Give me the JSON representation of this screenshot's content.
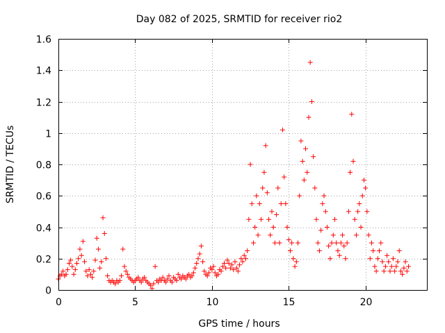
{
  "chart_data": {
    "type": "scatter",
    "title": "Day 082 of 2025, SRMTID for receiver rio2",
    "xlabel": "GPS time / hours",
    "ylabel": "SRMTID / TECUs",
    "xlim": [
      0,
      24
    ],
    "ylim": [
      0,
      1.6
    ],
    "xticks": [
      0,
      5,
      10,
      15,
      20
    ],
    "xtick_labels": [
      "0",
      "5",
      "10",
      "15",
      "20"
    ],
    "yticks": [
      0,
      0.2,
      0.4,
      0.6,
      0.8,
      1.0,
      1.2,
      1.4,
      1.6
    ],
    "ytick_labels": [
      "0",
      "0.2",
      "0.4",
      "0.6",
      "0.8",
      "1",
      "1.2",
      "1.4",
      "1.6"
    ],
    "grid": true,
    "marker": "plus",
    "color": "#ff0000",
    "series": [
      {
        "name": "rio2",
        "points": [
          [
            0.0,
            0.07
          ],
          [
            0.1,
            0.09
          ],
          [
            0.2,
            0.1
          ],
          [
            0.3,
            0.12
          ],
          [
            0.4,
            0.09
          ],
          [
            0.5,
            0.1
          ],
          [
            0.6,
            0.13
          ],
          [
            0.7,
            0.17
          ],
          [
            0.8,
            0.19
          ],
          [
            0.9,
            0.15
          ],
          [
            1.0,
            0.1
          ],
          [
            1.1,
            0.13
          ],
          [
            1.2,
            0.17
          ],
          [
            1.3,
            0.2
          ],
          [
            1.4,
            0.26
          ],
          [
            1.5,
            0.22
          ],
          [
            1.6,
            0.31
          ],
          [
            1.7,
            0.18
          ],
          [
            1.8,
            0.12
          ],
          [
            1.9,
            0.09
          ],
          [
            2.0,
            0.13
          ],
          [
            2.1,
            0.1
          ],
          [
            2.2,
            0.08
          ],
          [
            2.3,
            0.12
          ],
          [
            2.4,
            0.19
          ],
          [
            2.5,
            0.33
          ],
          [
            2.6,
            0.26
          ],
          [
            2.7,
            0.14
          ],
          [
            2.8,
            0.18
          ],
          [
            2.9,
            0.46
          ],
          [
            3.0,
            0.36
          ],
          [
            3.1,
            0.2
          ],
          [
            3.2,
            0.09
          ],
          [
            3.3,
            0.06
          ],
          [
            3.4,
            0.05
          ],
          [
            3.5,
            0.06
          ],
          [
            3.6,
            0.05
          ],
          [
            3.7,
            0.04
          ],
          [
            3.8,
            0.06
          ],
          [
            3.9,
            0.05
          ],
          [
            4.0,
            0.06
          ],
          [
            4.1,
            0.09
          ],
          [
            4.2,
            0.26
          ],
          [
            4.3,
            0.15
          ],
          [
            4.4,
            0.12
          ],
          [
            4.5,
            0.1
          ],
          [
            4.6,
            0.08
          ],
          [
            4.7,
            0.07
          ],
          [
            4.8,
            0.06
          ],
          [
            4.9,
            0.05
          ],
          [
            5.0,
            0.06
          ],
          [
            5.1,
            0.07
          ],
          [
            5.2,
            0.08
          ],
          [
            5.3,
            0.06
          ],
          [
            5.4,
            0.05
          ],
          [
            5.5,
            0.07
          ],
          [
            5.6,
            0.08
          ],
          [
            5.7,
            0.06
          ],
          [
            5.8,
            0.05
          ],
          [
            5.9,
            0.04
          ],
          [
            6.0,
            0.03
          ],
          [
            6.1,
            0.01
          ],
          [
            6.2,
            0.04
          ],
          [
            6.3,
            0.15
          ],
          [
            6.4,
            0.06
          ],
          [
            6.5,
            0.05
          ],
          [
            6.6,
            0.07
          ],
          [
            6.7,
            0.06
          ],
          [
            6.8,
            0.08
          ],
          [
            6.9,
            0.06
          ],
          [
            7.0,
            0.05
          ],
          [
            7.1,
            0.07
          ],
          [
            7.2,
            0.09
          ],
          [
            7.3,
            0.06
          ],
          [
            7.4,
            0.05
          ],
          [
            7.5,
            0.08
          ],
          [
            7.6,
            0.07
          ],
          [
            7.7,
            0.06
          ],
          [
            7.8,
            0.1
          ],
          [
            7.9,
            0.08
          ],
          [
            8.0,
            0.07
          ],
          [
            8.1,
            0.09
          ],
          [
            8.2,
            0.08
          ],
          [
            8.3,
            0.07
          ],
          [
            8.4,
            0.09
          ],
          [
            8.5,
            0.1
          ],
          [
            8.6,
            0.08
          ],
          [
            8.7,
            0.09
          ],
          [
            8.8,
            0.11
          ],
          [
            8.9,
            0.14
          ],
          [
            9.0,
            0.17
          ],
          [
            9.1,
            0.2
          ],
          [
            9.2,
            0.23
          ],
          [
            9.3,
            0.28
          ],
          [
            9.4,
            0.18
          ],
          [
            9.5,
            0.12
          ],
          [
            9.6,
            0.1
          ],
          [
            9.7,
            0.09
          ],
          [
            9.8,
            0.11
          ],
          [
            9.9,
            0.14
          ],
          [
            10.0,
            0.13
          ],
          [
            10.1,
            0.15
          ],
          [
            10.2,
            0.11
          ],
          [
            10.3,
            0.09
          ],
          [
            10.4,
            0.1
          ],
          [
            10.5,
            0.13
          ],
          [
            10.6,
            0.12
          ],
          [
            10.7,
            0.15
          ],
          [
            10.8,
            0.17
          ],
          [
            10.9,
            0.14
          ],
          [
            11.0,
            0.19
          ],
          [
            11.1,
            0.17
          ],
          [
            11.2,
            0.14
          ],
          [
            11.3,
            0.16
          ],
          [
            11.4,
            0.13
          ],
          [
            11.5,
            0.18
          ],
          [
            11.6,
            0.14
          ],
          [
            11.7,
            0.12
          ],
          [
            11.8,
            0.16
          ],
          [
            11.9,
            0.2
          ],
          [
            12.0,
            0.18
          ],
          [
            12.1,
            0.22
          ],
          [
            12.2,
            0.2
          ],
          [
            12.3,
            0.25
          ],
          [
            12.4,
            0.45
          ],
          [
            12.5,
            0.8
          ],
          [
            12.6,
            0.55
          ],
          [
            12.7,
            0.3
          ],
          [
            12.8,
            0.4
          ],
          [
            12.9,
            0.6
          ],
          [
            13.0,
            0.35
          ],
          [
            13.1,
            0.55
          ],
          [
            13.2,
            0.45
          ],
          [
            13.3,
            0.65
          ],
          [
            13.4,
            0.75
          ],
          [
            13.5,
            0.92
          ],
          [
            13.6,
            0.62
          ],
          [
            13.7,
            0.45
          ],
          [
            13.8,
            0.35
          ],
          [
            13.9,
            0.5
          ],
          [
            14.0,
            0.4
          ],
          [
            14.1,
            0.3
          ],
          [
            14.2,
            0.48
          ],
          [
            14.3,
            0.65
          ],
          [
            14.4,
            0.3
          ],
          [
            14.5,
            0.55
          ],
          [
            14.6,
            1.02
          ],
          [
            14.7,
            0.72
          ],
          [
            14.8,
            0.55
          ],
          [
            14.9,
            0.4
          ],
          [
            15.0,
            0.32
          ],
          [
            15.1,
            0.25
          ],
          [
            15.2,
            0.3
          ],
          [
            15.3,
            0.2
          ],
          [
            15.4,
            0.15
          ],
          [
            15.5,
            0.18
          ],
          [
            15.6,
            0.3
          ],
          [
            15.7,
            0.6
          ],
          [
            15.8,
            0.95
          ],
          [
            15.9,
            0.82
          ],
          [
            16.0,
            0.7
          ],
          [
            16.1,
            0.9
          ],
          [
            16.2,
            0.75
          ],
          [
            16.3,
            1.1
          ],
          [
            16.4,
            1.45
          ],
          [
            16.5,
            1.2
          ],
          [
            16.6,
            0.85
          ],
          [
            16.7,
            0.65
          ],
          [
            16.8,
            0.45
          ],
          [
            16.9,
            0.3
          ],
          [
            17.0,
            0.25
          ],
          [
            17.1,
            0.38
          ],
          [
            17.2,
            0.55
          ],
          [
            17.3,
            0.6
          ],
          [
            17.4,
            0.5
          ],
          [
            17.5,
            0.4
          ],
          [
            17.6,
            0.28
          ],
          [
            17.7,
            0.2
          ],
          [
            17.8,
            0.3
          ],
          [
            17.9,
            0.35
          ],
          [
            18.0,
            0.45
          ],
          [
            18.1,
            0.3
          ],
          [
            18.2,
            0.25
          ],
          [
            18.3,
            0.22
          ],
          [
            18.4,
            0.3
          ],
          [
            18.5,
            0.35
          ],
          [
            18.6,
            0.28
          ],
          [
            18.7,
            0.2
          ],
          [
            18.8,
            0.3
          ],
          [
            18.9,
            0.5
          ],
          [
            19.0,
            0.75
          ],
          [
            19.1,
            1.12
          ],
          [
            19.2,
            0.82
          ],
          [
            19.3,
            0.45
          ],
          [
            19.4,
            0.35
          ],
          [
            19.5,
            0.5
          ],
          [
            19.6,
            0.55
          ],
          [
            19.7,
            0.4
          ],
          [
            19.8,
            0.6
          ],
          [
            19.9,
            0.7
          ],
          [
            20.0,
            0.65
          ],
          [
            20.1,
            0.5
          ],
          [
            20.2,
            0.35
          ],
          [
            20.3,
            0.2
          ],
          [
            20.4,
            0.3
          ],
          [
            20.5,
            0.25
          ],
          [
            20.6,
            0.15
          ],
          [
            20.7,
            0.12
          ],
          [
            20.8,
            0.2
          ],
          [
            20.9,
            0.25
          ],
          [
            21.0,
            0.3
          ],
          [
            21.1,
            0.18
          ],
          [
            21.2,
            0.12
          ],
          [
            21.3,
            0.15
          ],
          [
            21.4,
            0.22
          ],
          [
            21.5,
            0.18
          ],
          [
            21.6,
            0.12
          ],
          [
            21.7,
            0.15
          ],
          [
            21.8,
            0.2
          ],
          [
            21.9,
            0.12
          ],
          [
            22.0,
            0.15
          ],
          [
            22.1,
            0.18
          ],
          [
            22.2,
            0.25
          ],
          [
            22.3,
            0.12
          ],
          [
            22.4,
            0.1
          ],
          [
            22.5,
            0.14
          ],
          [
            22.6,
            0.18
          ],
          [
            22.7,
            0.12
          ],
          [
            22.8,
            0.15
          ]
        ]
      }
    ]
  }
}
